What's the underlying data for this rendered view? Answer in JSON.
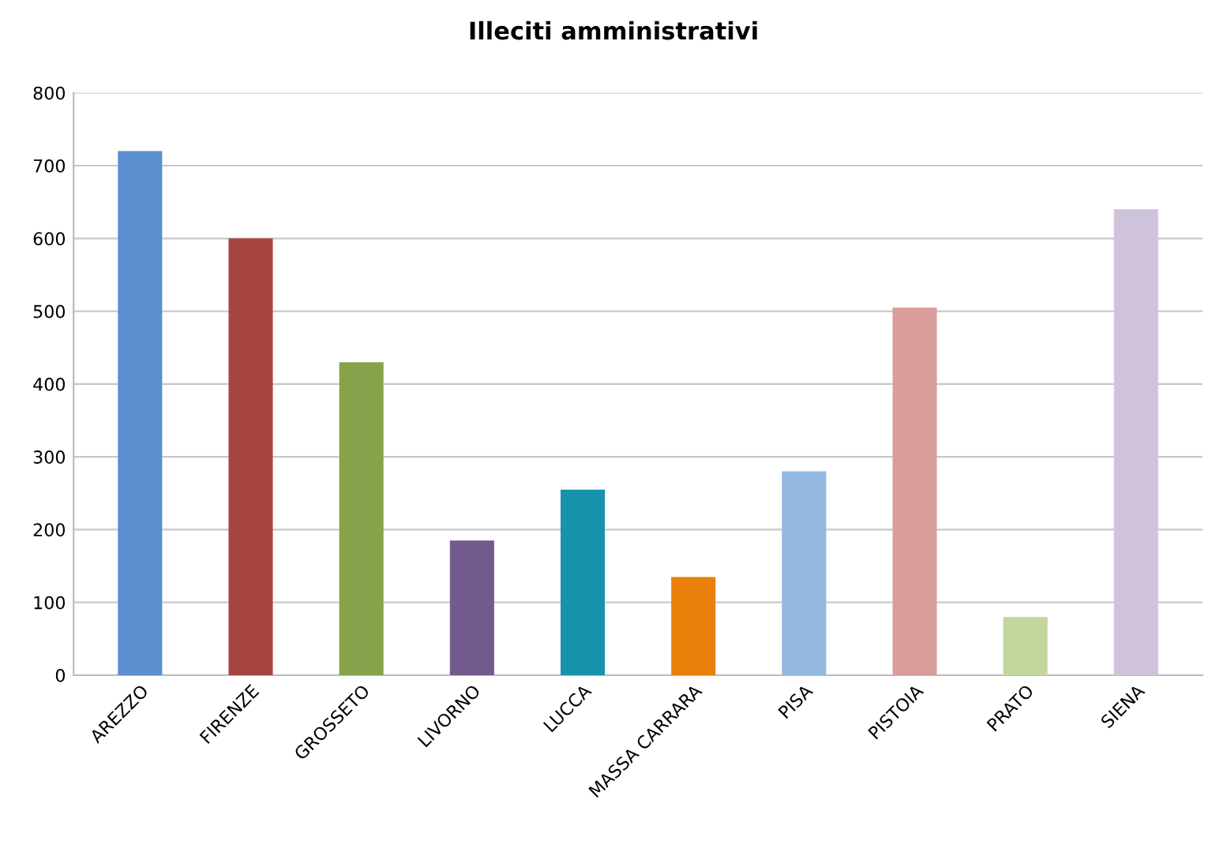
{
  "chart_data": {
    "type": "bar",
    "title": "Illeciti amministrativi",
    "categories": [
      "AREZZO",
      "FIRENZE",
      "GROSSETO",
      "LIVORNO",
      "LUCCA",
      "MASSA CARRARA",
      "PISA",
      "PISTOIA",
      "PRATO",
      "SIENA"
    ],
    "values": [
      720,
      600,
      430,
      185,
      255,
      135,
      280,
      505,
      80,
      640
    ],
    "colors": [
      "#5b8fd0",
      "#a84440",
      "#87a24a",
      "#725a8e",
      "#1793ad",
      "#e8800a",
      "#93b8e0",
      "#d99d9b",
      "#c3d69d",
      "#cfc3dc"
    ],
    "ylim": [
      0,
      800
    ],
    "yticks": [
      0,
      100,
      200,
      300,
      400,
      500,
      600,
      700,
      800
    ],
    "grid": "y",
    "legend": false
  }
}
